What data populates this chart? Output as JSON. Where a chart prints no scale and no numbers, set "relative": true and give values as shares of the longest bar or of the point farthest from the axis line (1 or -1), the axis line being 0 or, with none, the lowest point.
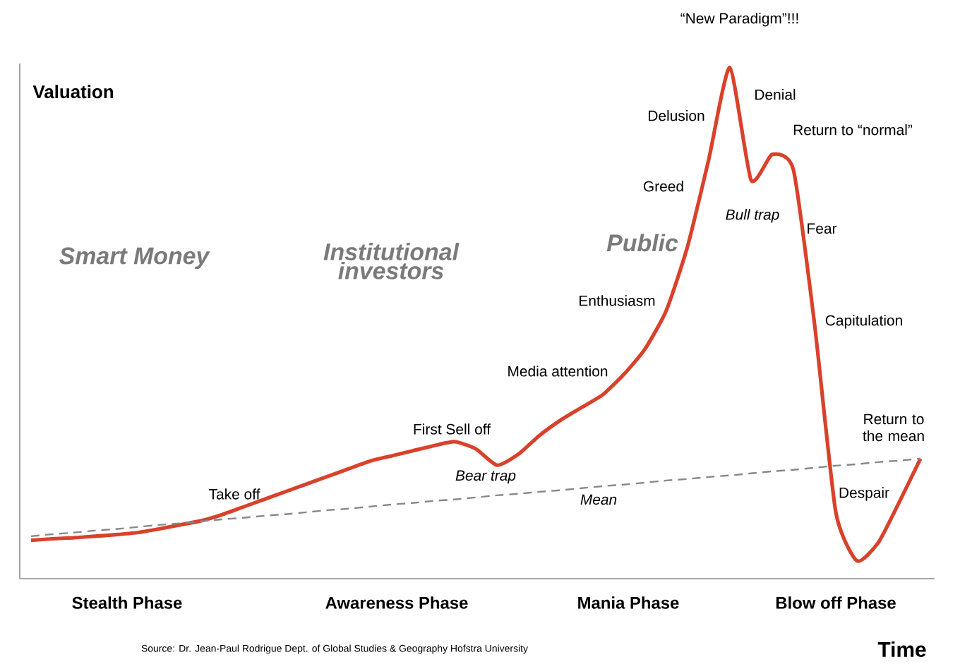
{
  "chart_data": {
    "type": "line",
    "relative": true,
    "xlabel": "Time",
    "ylabel": "Valuation",
    "categories": [
      null,
      null,
      null,
      null,
      null,
      null,
      null,
      null,
      null,
      null,
      null,
      null,
      null,
      null,
      null,
      null,
      null,
      null,
      null,
      null,
      null,
      null,
      null,
      null,
      null,
      null,
      null,
      null,
      null,
      null,
      null,
      null,
      null,
      null,
      null,
      null,
      null,
      null,
      null,
      null,
      null,
      null,
      null
    ],
    "series": [
      {
        "color": "#d9412b",
        "values": [
          0.075,
          0.078,
          0.08,
          0.083,
          0.086,
          0.09,
          0.097,
          0.105,
          0.113,
          0.125,
          0.14,
          0.155,
          0.17,
          0.185,
          0.2,
          0.215,
          0.23,
          0.24,
          0.25,
          0.26,
          0.268,
          0.254,
          0.222,
          0.243,
          0.28,
          0.31,
          0.335,
          0.36,
          0.4,
          0.45,
          0.525,
          0.65,
          0.82,
          1.0,
          0.78,
          0.83,
          0.8,
          0.497,
          0.13,
          0.035,
          0.07,
          0.15,
          0.235
        ]
      },
      {
        "color": "#888888",
        "line_style": "dashed",
        "values": [
          0.083,
          0.087,
          0.09,
          0.094,
          0.097,
          0.101,
          0.105,
          0.108,
          0.112,
          0.116,
          0.119,
          0.123,
          0.126,
          0.13,
          0.134,
          0.137,
          0.141,
          0.145,
          0.148,
          0.152,
          0.155,
          0.159,
          0.163,
          0.166,
          0.17,
          0.173,
          0.177,
          0.181,
          0.184,
          0.188,
          0.192,
          0.195,
          0.199,
          0.202,
          0.206,
          0.21,
          0.213,
          0.217,
          0.221,
          0.224,
          0.228,
          0.231,
          0.235
        ]
      }
    ],
    "annotations": [
      "Smart Money",
      "Institutional investors",
      "Public",
      "Take off",
      "First Sell off",
      "Bear trap",
      "Media attention",
      "Enthusiasm",
      "Greed",
      "Delusion",
      "“New Paradigm”!!!",
      "Denial",
      "Return to “normal”",
      "Bull trap",
      "Fear",
      "Capitulation",
      "Despair",
      "Return to the mean",
      "Mean",
      "Stealth Phase",
      "Awareness Phase",
      "Mania Phase",
      "Blow off Phase",
      "Source: Dr. Jean-Paul Rodrigue Dept. of Global Studies & Geography Hofstra University"
    ]
  }
}
